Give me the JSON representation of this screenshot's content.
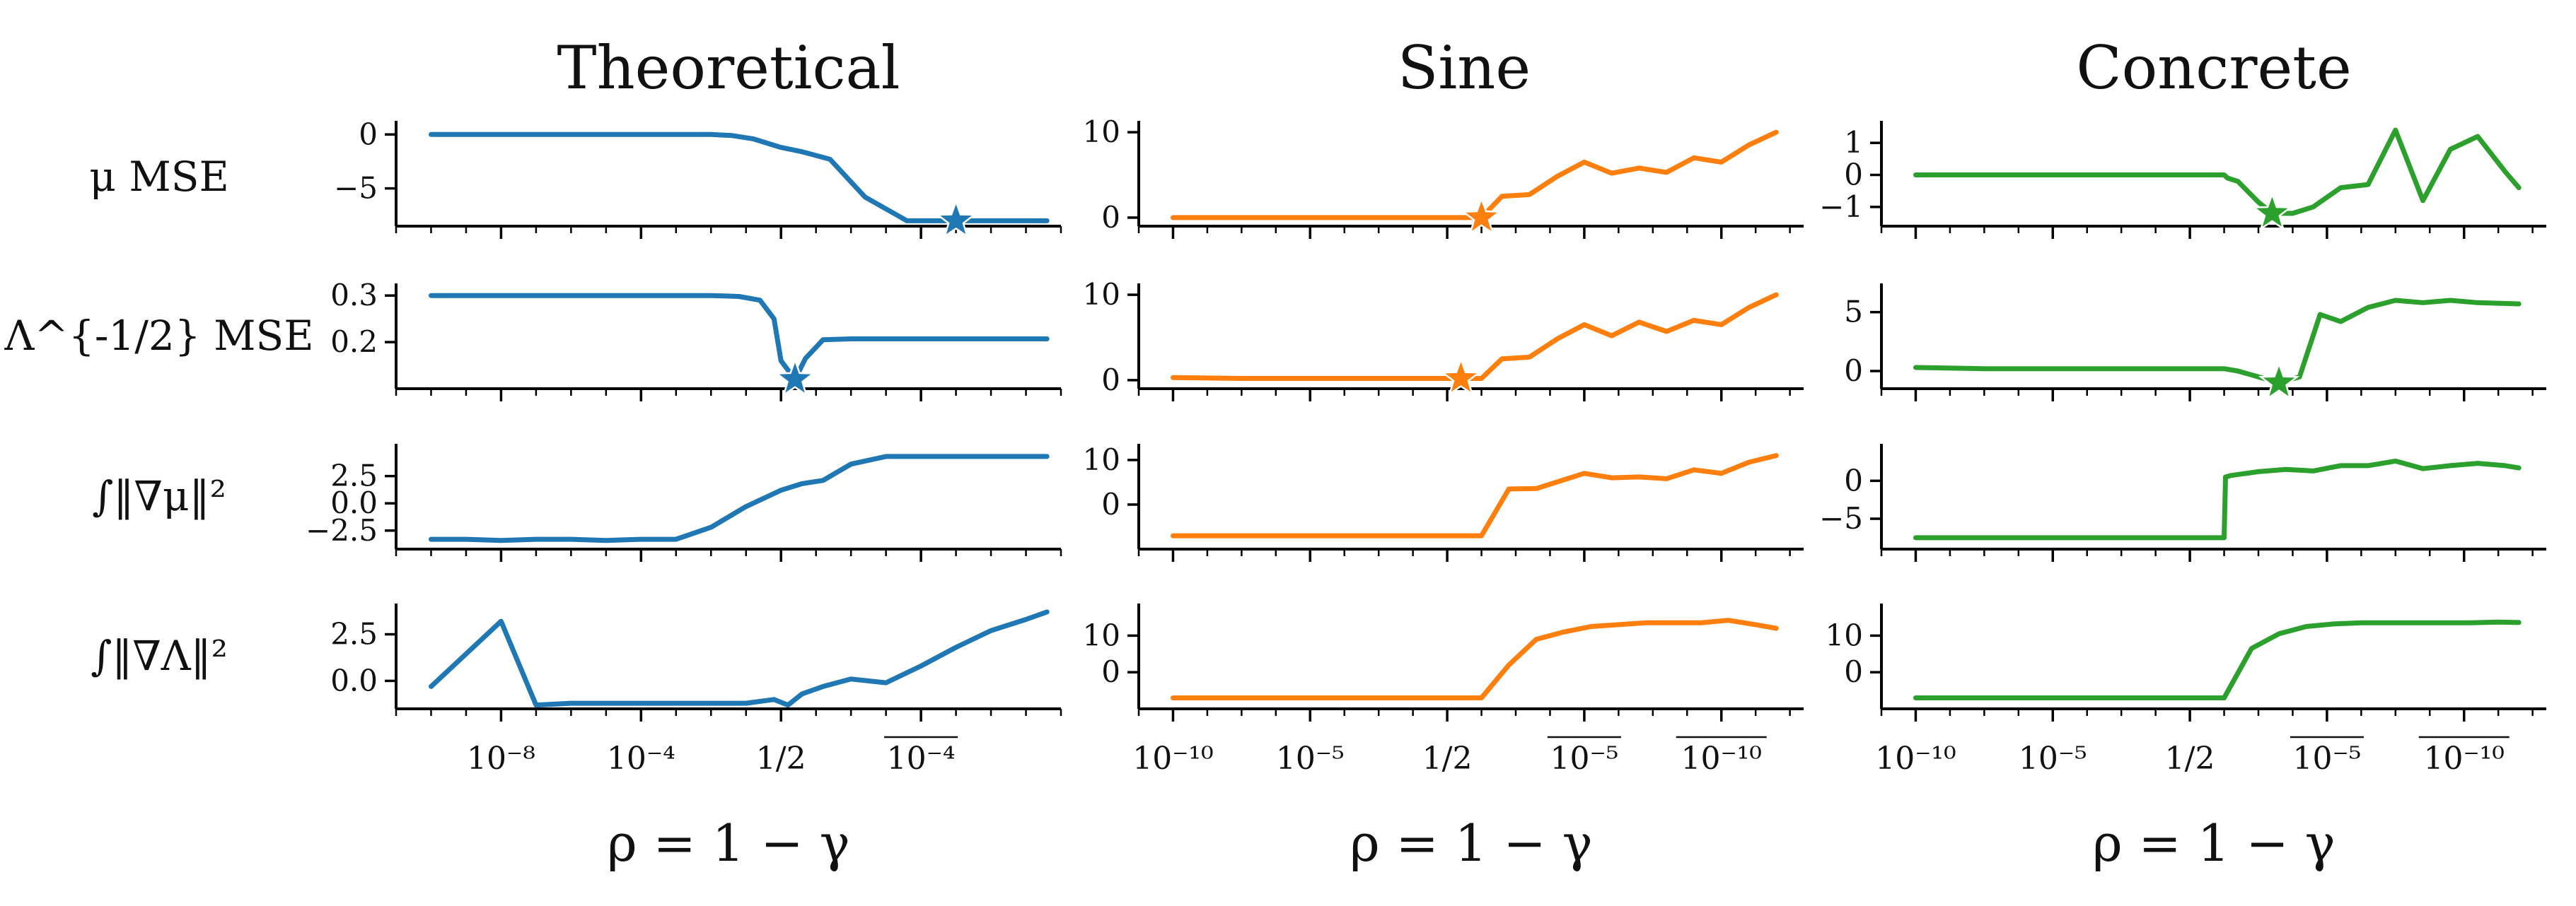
{
  "colors": {
    "Theoretical": "#1f77b4",
    "Sine": "#ff7f0e",
    "Concrete": "#2ca02c"
  },
  "row_labels": [
    "μ MSE",
    "Λ^{-1/2} MSE",
    "∫‖∇μ‖²",
    "∫‖∇Λ‖²"
  ],
  "chart_data": [
    {
      "type": "line",
      "title": "Theoretical",
      "column": 0,
      "row": 0,
      "row_label": "μ MSE",
      "ylim": [
        -8.5,
        1
      ],
      "yticks": [
        0,
        -5
      ],
      "yticklabels": [
        "0",
        "−5"
      ],
      "xlim": [
        -0.5,
        9.0
      ],
      "xticks": [
        1,
        3,
        5,
        7
      ],
      "xticklabels": [
        "10⁻⁸",
        "10⁻⁴",
        "1/2",
        "10⁻⁴"
      ],
      "xtick_overline": [
        false,
        false,
        false,
        true
      ],
      "series": [
        {
          "name": "Theoretical",
          "x": [
            0,
            1,
            2,
            3,
            3.5,
            4,
            4.3,
            4.6,
            5.0,
            5.3,
            5.7,
            6.2,
            6.8,
            7.2,
            7.5,
            8.0,
            8.5,
            8.8
          ],
          "y": [
            0,
            0,
            0,
            0,
            0,
            0,
            -0.1,
            -0.4,
            -1.2,
            -1.6,
            -2.3,
            -5.8,
            -8,
            -8,
            -8,
            -8,
            -8,
            -8
          ]
        }
      ],
      "marker": {
        "x": 7.5,
        "y": -8
      },
      "xlabel": ""
    },
    {
      "type": "line",
      "title": "Theoretical",
      "column": 0,
      "row": 1,
      "row_label": "Λ^{-1/2} MSE",
      "ylim": [
        0.1,
        0.32
      ],
      "yticks": [
        0.3,
        0.2
      ],
      "yticklabels": [
        "0.3",
        "0.2"
      ],
      "xlim": [
        -0.5,
        9.0
      ],
      "xticks": [
        1,
        3,
        5,
        7
      ],
      "xticklabels": [
        "10⁻⁸",
        "10⁻⁴",
        "1/2",
        "10⁻⁴"
      ],
      "xtick_overline": [
        false,
        false,
        false,
        true
      ],
      "series": [
        {
          "name": "Theoretical",
          "x": [
            0,
            1,
            2,
            3,
            3.5,
            4,
            4.4,
            4.7,
            4.9,
            5.0,
            5.2,
            5.35,
            5.6,
            6.0,
            6.5,
            7,
            7.5,
            8,
            8.5,
            8.8
          ],
          "y": [
            0.3,
            0.3,
            0.3,
            0.3,
            0.3,
            0.3,
            0.298,
            0.29,
            0.25,
            0.16,
            0.12,
            0.165,
            0.205,
            0.207,
            0.207,
            0.207,
            0.207,
            0.207,
            0.207,
            0.207
          ]
        }
      ],
      "marker": {
        "x": 5.2,
        "y": 0.12
      },
      "xlabel": ""
    },
    {
      "type": "line",
      "title": "Theoretical",
      "column": 0,
      "row": 2,
      "row_label": "∫‖∇μ‖²",
      "ylim": [
        -4.2,
        5.2
      ],
      "yticks": [
        2.5,
        0.0,
        -2.5
      ],
      "yticklabels": [
        "2.5",
        "0.0",
        "−2.5"
      ],
      "xlim": [
        -0.5,
        9.0
      ],
      "xticks": [
        1,
        3,
        5,
        7
      ],
      "xticklabels": [
        "10⁻⁸",
        "10⁻⁴",
        "1/2",
        "10⁻⁴"
      ],
      "xtick_overline": [
        false,
        false,
        false,
        true
      ],
      "series": [
        {
          "name": "Theoretical",
          "x": [
            0,
            0.5,
            1,
            1.5,
            2,
            2.5,
            3,
            3.5,
            4,
            4.5,
            5,
            5.3,
            5.6,
            6.0,
            6.5,
            7,
            7.5,
            8,
            8.5,
            8.8
          ],
          "y": [
            -3.3,
            -3.3,
            -3.4,
            -3.3,
            -3.3,
            -3.4,
            -3.3,
            -3.3,
            -2.2,
            -0.3,
            1.2,
            1.8,
            2.1,
            3.6,
            4.3,
            4.3,
            4.3,
            4.3,
            4.3,
            4.3
          ]
        }
      ],
      "xlabel": ""
    },
    {
      "type": "line",
      "title": "Theoretical",
      "column": 0,
      "row": 3,
      "row_label": "∫‖∇Λ‖²",
      "ylim": [
        -1.5,
        4.0
      ],
      "yticks": [
        2.5,
        0.0
      ],
      "yticklabels": [
        "2.5",
        "0.0"
      ],
      "xlim": [
        -0.5,
        9.0
      ],
      "xticks": [
        1,
        3,
        5,
        7
      ],
      "xticklabels": [
        "10⁻⁸",
        "10⁻⁴",
        "1/2",
        "10⁻⁴"
      ],
      "xtick_overline": [
        false,
        false,
        false,
        true
      ],
      "series": [
        {
          "name": "Theoretical",
          "x": [
            0,
            1,
            1.5,
            2,
            3,
            4,
            4.5,
            4.9,
            5.1,
            5.3,
            5.6,
            6.0,
            6.5,
            7,
            7.5,
            8,
            8.5,
            8.8
          ],
          "y": [
            -0.3,
            3.2,
            -1.3,
            -1.2,
            -1.2,
            -1.2,
            -1.2,
            -1.0,
            -1.3,
            -0.7,
            -0.3,
            0.1,
            -0.1,
            0.8,
            1.8,
            2.7,
            3.3,
            3.7
          ]
        }
      ],
      "xlabel": "ρ = 1 − γ"
    },
    {
      "type": "line",
      "title": "Sine",
      "column": 1,
      "row": 0,
      "row_label": "μ MSE",
      "ylim": [
        -1,
        11
      ],
      "yticks": [
        10,
        0
      ],
      "yticklabels": [
        "10",
        "0"
      ],
      "xlim": [
        -0.5,
        9.2
      ],
      "xticks": [
        0,
        2,
        4,
        6,
        8
      ],
      "xticklabels": [
        "10⁻¹⁰",
        "10⁻⁵",
        "1/2",
        "10⁻⁵",
        "10⁻¹⁰"
      ],
      "xtick_overline": [
        false,
        false,
        false,
        true,
        true
      ],
      "series": [
        {
          "name": "Sine",
          "x": [
            0,
            1,
            2,
            3,
            4,
            4.5,
            4.8,
            5.2,
            5.6,
            6.0,
            6.4,
            6.8,
            7.2,
            7.6,
            8.0,
            8.4,
            8.8
          ],
          "y": [
            0,
            0,
            0,
            0,
            0,
            0,
            2.5,
            2.7,
            4.8,
            6.5,
            5.2,
            5.8,
            5.3,
            7.0,
            6.5,
            8.5,
            10.0
          ]
        }
      ],
      "marker": {
        "x": 4.5,
        "y": 0
      },
      "xlabel": ""
    },
    {
      "type": "line",
      "title": "Sine",
      "column": 1,
      "row": 1,
      "row_label": "Λ^{-1/2} MSE",
      "ylim": [
        -1,
        11
      ],
      "yticks": [
        10,
        0
      ],
      "yticklabels": [
        "10",
        "0"
      ],
      "xlim": [
        -0.5,
        9.2
      ],
      "xticks": [
        0,
        2,
        4,
        6,
        8
      ],
      "xticklabels": [
        "10⁻¹⁰",
        "10⁻⁵",
        "1/2",
        "10⁻⁵",
        "10⁻¹⁰"
      ],
      "xtick_overline": [
        false,
        false,
        false,
        true,
        true
      ],
      "series": [
        {
          "name": "Sine",
          "x": [
            0,
            1,
            2,
            3,
            3.8,
            4.2,
            4.5,
            4.8,
            5.2,
            5.6,
            6.0,
            6.4,
            6.8,
            7.2,
            7.6,
            8.0,
            8.4,
            8.8
          ],
          "y": [
            0.3,
            0.2,
            0.2,
            0.2,
            0.2,
            0.2,
            0.2,
            2.5,
            2.7,
            4.8,
            6.5,
            5.2,
            6.8,
            5.7,
            7.0,
            6.5,
            8.5,
            10.0
          ]
        }
      ],
      "marker": {
        "x": 4.2,
        "y": 0.2
      },
      "xlabel": ""
    },
    {
      "type": "line",
      "title": "Sine",
      "column": 1,
      "row": 2,
      "row_label": "∫‖∇μ‖²",
      "ylim": [
        -10,
        13
      ],
      "yticks": [
        10,
        0
      ],
      "yticklabels": [
        "10",
        "0"
      ],
      "xlim": [
        -0.5,
        9.2
      ],
      "xticks": [
        0,
        2,
        4,
        6,
        8
      ],
      "xticklabels": [
        "10⁻¹⁰",
        "10⁻⁵",
        "1/2",
        "10⁻⁵",
        "10⁻¹⁰"
      ],
      "xtick_overline": [
        false,
        false,
        false,
        true,
        true
      ],
      "series": [
        {
          "name": "Sine",
          "x": [
            0,
            1,
            2,
            3,
            4,
            4.5,
            4.9,
            5.3,
            6.0,
            6.4,
            6.8,
            7.2,
            7.6,
            8.0,
            8.4,
            8.8
          ],
          "y": [
            -7,
            -7,
            -7,
            -7,
            -7,
            -7,
            3.5,
            3.6,
            7,
            6,
            6.2,
            5.8,
            7.8,
            7.0,
            9.5,
            11
          ]
        }
      ],
      "xlabel": ""
    },
    {
      "type": "line",
      "title": "Sine",
      "column": 1,
      "row": 3,
      "row_label": "∫‖∇Λ‖²",
      "ylim": [
        -10,
        18
      ],
      "yticks": [
        10,
        0
      ],
      "yticklabels": [
        "10",
        "0"
      ],
      "xlim": [
        -0.5,
        9.2
      ],
      "xticks": [
        0,
        2,
        4,
        6,
        8
      ],
      "xticklabels": [
        "10⁻¹⁰",
        "10⁻⁵",
        "1/2",
        "10⁻⁵",
        "10⁻¹⁰"
      ],
      "xtick_overline": [
        false,
        false,
        false,
        true,
        true
      ],
      "series": [
        {
          "name": "Sine",
          "x": [
            0,
            1,
            2,
            3,
            4,
            4.5,
            4.9,
            5.3,
            5.7,
            6.1,
            6.5,
            6.9,
            7.3,
            7.7,
            8.1,
            8.5,
            8.8
          ],
          "y": [
            -7,
            -7,
            -7,
            -7,
            -7,
            -7,
            2,
            9,
            11,
            12.5,
            13,
            13.5,
            13.5,
            13.5,
            14.2,
            13,
            12
          ]
        }
      ],
      "xlabel": "ρ = 1 − γ"
    },
    {
      "type": "line",
      "title": "Concrete",
      "column": 2,
      "row": 0,
      "row_label": "μ MSE",
      "ylim": [
        -1.6,
        1.6
      ],
      "yticks": [
        1,
        0,
        -1
      ],
      "yticklabels": [
        "1",
        "0",
        "−1"
      ],
      "xlim": [
        -0.5,
        9.2
      ],
      "xticks": [
        0,
        2,
        4,
        6,
        8
      ],
      "xticklabels": [
        "10⁻¹⁰",
        "10⁻⁵",
        "1/2",
        "10⁻⁵",
        "10⁻¹⁰"
      ],
      "xtick_overline": [
        false,
        false,
        false,
        true,
        true
      ],
      "series": [
        {
          "name": "Concrete",
          "x": [
            0,
            1,
            2,
            3,
            4,
            4.5,
            4.55,
            4.7,
            5.0,
            5.2,
            5.5,
            5.8,
            6.2,
            6.6,
            7.0,
            7.4,
            7.8,
            8.2,
            8.6,
            8.8
          ],
          "y": [
            0,
            0,
            0,
            0,
            0,
            0,
            -0.1,
            -0.2,
            -0.85,
            -1.2,
            -1.2,
            -1.0,
            -0.4,
            -0.3,
            1.4,
            -0.8,
            0.8,
            1.2,
            0.1,
            -0.4
          ]
        }
      ],
      "marker": {
        "x": 5.2,
        "y": -1.2
      },
      "xlabel": ""
    },
    {
      "type": "line",
      "title": "Concrete",
      "column": 2,
      "row": 1,
      "row_label": "Λ^{-1/2} MSE",
      "ylim": [
        -1.5,
        7.2
      ],
      "yticks": [
        5,
        0
      ],
      "yticklabels": [
        "5",
        "0"
      ],
      "xlim": [
        -0.5,
        9.2
      ],
      "xticks": [
        0,
        2,
        4,
        6,
        8
      ],
      "xticklabels": [
        "10⁻¹⁰",
        "10⁻⁵",
        "1/2",
        "10⁻⁵",
        "10⁻¹⁰"
      ],
      "xtick_overline": [
        false,
        false,
        false,
        true,
        true
      ],
      "series": [
        {
          "name": "Concrete",
          "x": [
            0,
            1,
            2,
            3,
            4,
            4.5,
            4.7,
            5.0,
            5.3,
            5.6,
            5.9,
            6.2,
            6.6,
            7.0,
            7.4,
            7.8,
            8.2,
            8.8
          ],
          "y": [
            0.3,
            0.2,
            0.2,
            0.2,
            0.2,
            0.2,
            0,
            -0.5,
            -1.0,
            -0.5,
            4.8,
            4.2,
            5.4,
            6.0,
            5.8,
            6.0,
            5.8,
            5.7
          ]
        }
      ],
      "marker": {
        "x": 5.3,
        "y": -1.0
      },
      "xlabel": ""
    },
    {
      "type": "line",
      "title": "Concrete",
      "column": 2,
      "row": 2,
      "row_label": "∫‖∇μ‖²",
      "ylim": [
        -9,
        4.5
      ],
      "yticks": [
        0,
        -5
      ],
      "yticklabels": [
        "0",
        "−5"
      ],
      "xlim": [
        -0.5,
        9.2
      ],
      "xticks": [
        0,
        2,
        4,
        6,
        8
      ],
      "xticklabels": [
        "10⁻¹⁰",
        "10⁻⁵",
        "1/2",
        "10⁻⁵",
        "10⁻¹⁰"
      ],
      "xtick_overline": [
        false,
        false,
        false,
        true,
        true
      ],
      "series": [
        {
          "name": "Concrete",
          "x": [
            0,
            1,
            2,
            3,
            4,
            4.5,
            4.52,
            4.6,
            5.0,
            5.4,
            5.8,
            6.2,
            6.6,
            7.0,
            7.4,
            7.8,
            8.2,
            8.6,
            8.8
          ],
          "y": [
            -7.5,
            -7.5,
            -7.5,
            -7.5,
            -7.5,
            -7.5,
            0.5,
            0.7,
            1.2,
            1.5,
            1.3,
            2.0,
            2.0,
            2.6,
            1.6,
            2.0,
            2.3,
            2.0,
            1.7
          ]
        }
      ],
      "xlabel": ""
    },
    {
      "type": "line",
      "title": "Concrete",
      "column": 2,
      "row": 3,
      "row_label": "∫‖∇Λ‖²",
      "ylim": [
        -10,
        18
      ],
      "yticks": [
        10,
        0
      ],
      "yticklabels": [
        "10",
        "0"
      ],
      "xlim": [
        -0.5,
        9.2
      ],
      "xticks": [
        0,
        2,
        4,
        6,
        8
      ],
      "xticklabels": [
        "10⁻¹⁰",
        "10⁻⁵",
        "1/2",
        "10⁻⁵",
        "10⁻¹⁰"
      ],
      "xtick_overline": [
        false,
        false,
        false,
        true,
        true
      ],
      "series": [
        {
          "name": "Concrete",
          "x": [
            0,
            1,
            2,
            3,
            4,
            4.5,
            4.9,
            5.3,
            5.7,
            6.1,
            6.5,
            6.9,
            7.3,
            7.7,
            8.1,
            8.5,
            8.8
          ],
          "y": [
            -7,
            -7,
            -7,
            -7,
            -7,
            -7,
            6.5,
            10.5,
            12.5,
            13.2,
            13.5,
            13.5,
            13.5,
            13.5,
            13.5,
            13.7,
            13.6
          ]
        }
      ],
      "xlabel": "ρ = 1 − γ"
    }
  ]
}
